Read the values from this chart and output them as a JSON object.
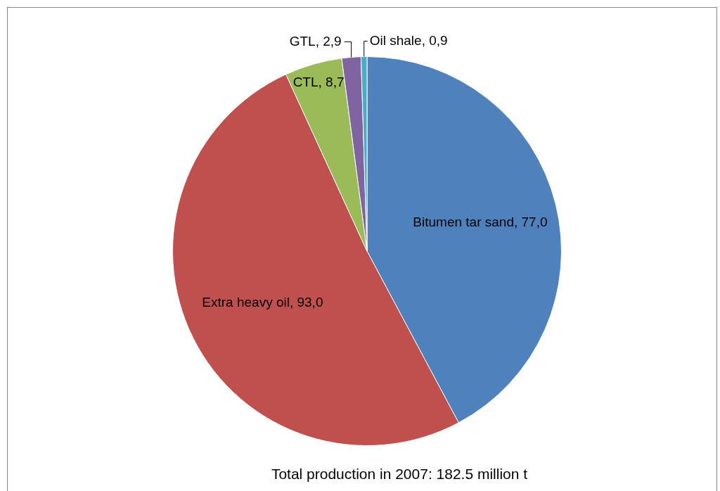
{
  "chart_data": {
    "type": "pie",
    "categories": [
      "Bitumen tar sand",
      "Extra heavy oil",
      "CTL",
      "GTL",
      "Oil shale"
    ],
    "values": [
      77.0,
      93.0,
      8.7,
      2.9,
      0.9
    ],
    "colors": [
      "#4f81bd",
      "#c0504d",
      "#9bbb59",
      "#8064a2",
      "#4bacc6"
    ],
    "value_labels": [
      "77,0",
      "93,0",
      "8,7",
      "2,9",
      "0,9"
    ],
    "annotations": [
      "Total production in 2007: 182.5 million t"
    ]
  }
}
